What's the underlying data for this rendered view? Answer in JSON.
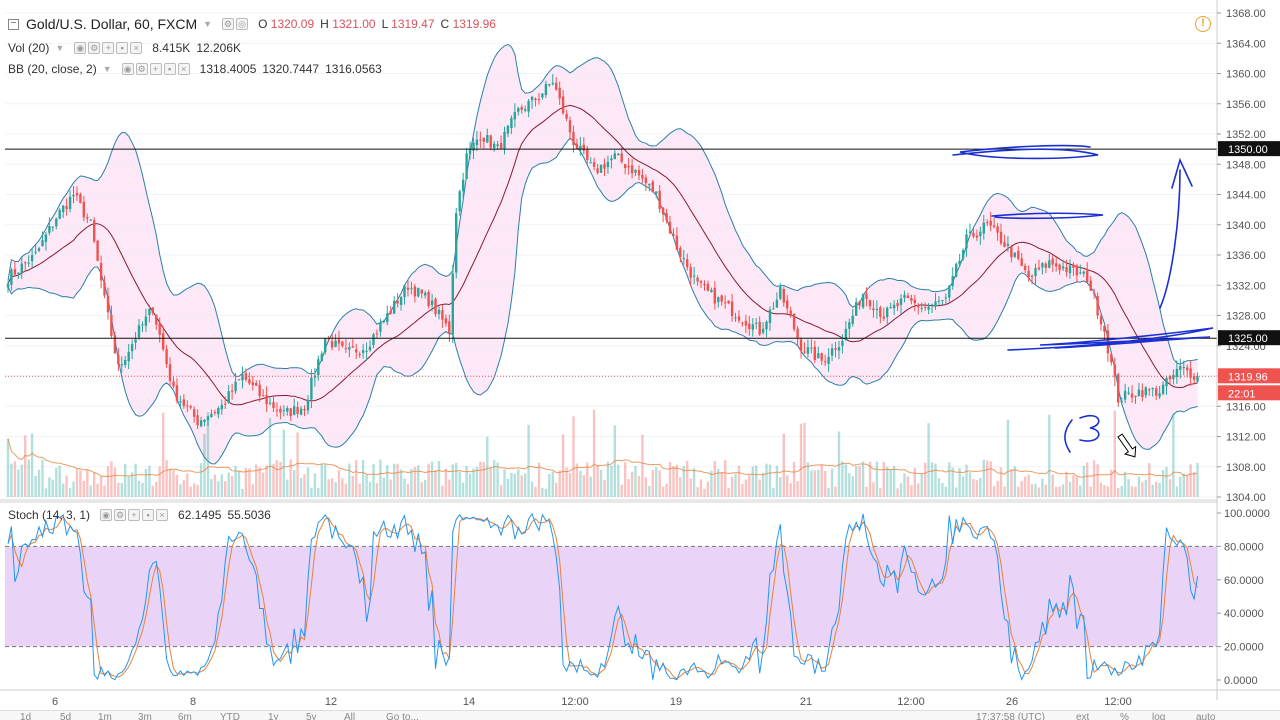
{
  "header": {
    "symbol": "Gold/U.S. Dollar, 60, FXCM",
    "open_label": "O",
    "open": "1320.09",
    "high_label": "H",
    "high": "1321.00",
    "low_label": "L",
    "low": "1319.47",
    "close_label": "C",
    "close": "1319.96"
  },
  "indicators": {
    "vol": {
      "label": "Vol (20)",
      "v1": "8.415K",
      "v2": "12.206K"
    },
    "bb": {
      "label": "BB (20, close, 2)",
      "basis": "1318.4005",
      "upper": "1320.7447",
      "lower": "1316.0563"
    },
    "stoch": {
      "label": "Stoch (14, 3, 1)",
      "k": "62.1495",
      "d": "55.5036"
    }
  },
  "colors": {
    "up": "#26a69a",
    "down": "#ef5350",
    "bb_band": "#2a7fa8",
    "bb_basis": "#8b1a2f",
    "bb_fill": "#fce4f4",
    "vol_ma": "#e8823a",
    "stoch_k": "#2196f3",
    "stoch_d": "#e8823a",
    "stoch_fill": "#e5cdf6",
    "drawing": "#1a2fd4",
    "price_line": "#ef5350"
  },
  "axis": {
    "price_ticks": [
      "1368.00",
      "1364.00",
      "1360.00",
      "1356.00",
      "1352.00",
      "1348.00",
      "1344.00",
      "1340.00",
      "1336.00",
      "1332.00",
      "1328.00",
      "1324.00",
      "1320.00",
      "1316.00",
      "1312.00",
      "1308.00",
      "1304.00"
    ],
    "stoch_ticks": [
      "100.0000",
      "80.0000",
      "60.0000",
      "40.0000",
      "20.0000",
      "0.0000"
    ],
    "time_ticks": [
      "6",
      "8",
      "12",
      "14",
      "12:00",
      "19",
      "21",
      "12:00",
      "26",
      "12:00"
    ]
  },
  "price_labels": {
    "level_1350": "1350.00",
    "level_1325": "1325.00",
    "last_price": "1319.96",
    "countdown": "22:01"
  },
  "bottom_bar": {
    "intervals": [
      "1d",
      "5d",
      "1m",
      "3m",
      "6m",
      "YTD",
      "1y",
      "5y",
      "All",
      "Go to..."
    ],
    "time": "17:37:58 (UTC)",
    "options": [
      "ext",
      "%",
      "log",
      "auto"
    ]
  },
  "chart_data": [
    {
      "type": "candlestick",
      "title": "Gold/U.S. Dollar, 60, FXCM",
      "ylim": [
        1304,
        1368
      ],
      "horizontal_levels": [
        1350,
        1325
      ],
      "last_price": 1319.96,
      "anchors": [
        [
          0,
          1333
        ],
        [
          8,
          1336
        ],
        [
          14,
          1341
        ],
        [
          19,
          1344
        ],
        [
          24,
          1340
        ],
        [
          28,
          1330
        ],
        [
          32,
          1321
        ],
        [
          38,
          1326
        ],
        [
          42,
          1329
        ],
        [
          48,
          1318
        ],
        [
          55,
          1314
        ],
        [
          62,
          1316
        ],
        [
          68,
          1320
        ],
        [
          74,
          1317
        ],
        [
          80,
          1315
        ],
        [
          86,
          1316
        ],
        [
          92,
          1325
        ],
        [
          98,
          1323
        ],
        [
          104,
          1324
        ],
        [
          110,
          1328
        ],
        [
          116,
          1332
        ],
        [
          122,
          1330
        ],
        [
          128,
          1326
        ],
        [
          130,
          1342
        ],
        [
          133,
          1349
        ],
        [
          137,
          1352
        ],
        [
          142,
          1350
        ],
        [
          148,
          1355
        ],
        [
          154,
          1357
        ],
        [
          158,
          1359
        ],
        [
          164,
          1351
        ],
        [
          170,
          1347
        ],
        [
          176,
          1349
        ],
        [
          182,
          1347
        ],
        [
          188,
          1344
        ],
        [
          194,
          1337
        ],
        [
          200,
          1332
        ],
        [
          206,
          1330
        ],
        [
          212,
          1328
        ],
        [
          218,
          1326
        ],
        [
          224,
          1331
        ],
        [
          230,
          1324
        ],
        [
          236,
          1322
        ],
        [
          242,
          1325
        ],
        [
          248,
          1331
        ],
        [
          254,
          1328
        ],
        [
          260,
          1330
        ],
        [
          266,
          1329
        ],
        [
          272,
          1330
        ],
        [
          278,
          1338
        ],
        [
          284,
          1340
        ],
        [
          290,
          1337
        ],
        [
          296,
          1333
        ],
        [
          302,
          1335
        ],
        [
          308,
          1334
        ],
        [
          313,
          1333
        ],
        [
          318,
          1326
        ],
        [
          322,
          1317
        ],
        [
          328,
          1318
        ],
        [
          334,
          1318
        ],
        [
          340,
          1321
        ],
        [
          345,
          1320
        ]
      ]
    },
    {
      "type": "bar",
      "title": "Vol (20)",
      "series": [
        {
          "name": "Vol (20)",
          "last": 8415
        },
        {
          "name": "MA",
          "last": 12206
        }
      ]
    },
    {
      "type": "line",
      "title": "Stoch (14, 3, 1)",
      "ylim": [
        0,
        100
      ],
      "series": [
        {
          "name": "%K",
          "last": 62.1495
        },
        {
          "name": "%D",
          "last": 55.5036
        }
      ]
    }
  ]
}
